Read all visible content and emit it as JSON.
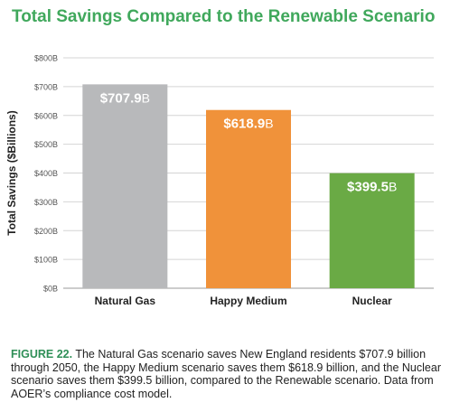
{
  "title": "Total Savings Compared to the Renewable Scenario",
  "chart_data": {
    "type": "bar",
    "title": "Total Savings Compared to the Renewable Scenario",
    "xlabel": "",
    "ylabel": "Total Savings ($Billions)",
    "ylim": [
      0,
      800
    ],
    "yticks": [
      0,
      100,
      200,
      300,
      400,
      500,
      600,
      700,
      800
    ],
    "ytick_labels": [
      "$0B",
      "$100B",
      "$200B",
      "$300B",
      "$400B",
      "$500B",
      "$600B",
      "$700B",
      "$800B"
    ],
    "categories": [
      "Natural Gas",
      "Happy Medium",
      "Nuclear"
    ],
    "values": [
      707.9,
      618.9,
      399.5
    ],
    "data_labels": [
      {
        "value": "$707.9",
        "unit": "B"
      },
      {
        "value": "$618.9",
        "unit": "B"
      },
      {
        "value": "$399.5",
        "unit": "B"
      }
    ],
    "colors": [
      "#b8b9bb",
      "#f0923a",
      "#6aaa45"
    ],
    "grid": true,
    "legend": "none"
  },
  "caption": {
    "lead": "FIGURE 22.",
    "text": " The Natural Gas scenario saves New England residents $707.9 billion through 2050, the Happy Medium scenario saves them $618.9 billion, and the Nuclear scenario saves them $399.5 billion, compared to the Renewable scenario. Data from AOER’s compliance cost model."
  },
  "colors": {
    "title": "#40a85c",
    "caption_lead": "#2f8f57"
  }
}
